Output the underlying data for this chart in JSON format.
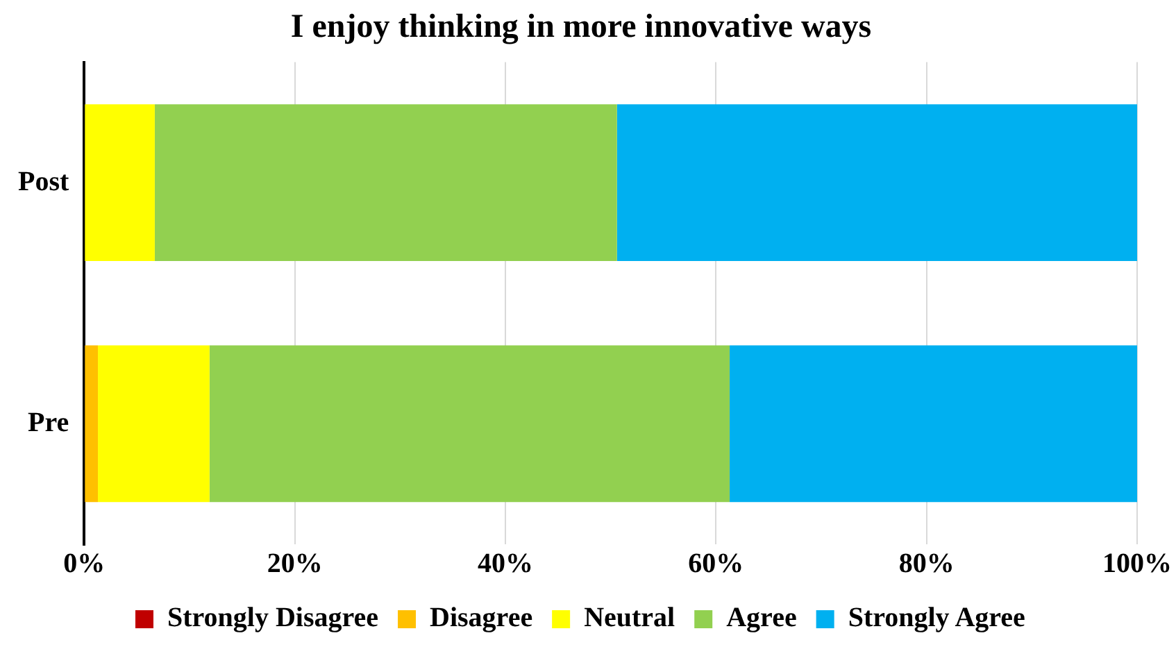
{
  "chart_data": {
    "type": "bar",
    "orientation": "horizontal",
    "stacked": true,
    "title": "I enjoy thinking in more innovative ways",
    "categories": [
      "Post",
      "Pre"
    ],
    "series": [
      {
        "name": "Strongly Disagree",
        "color": "#c00000",
        "values": [
          0,
          0
        ]
      },
      {
        "name": "Disagree",
        "color": "#ffc000",
        "values": [
          0,
          1.3
        ]
      },
      {
        "name": "Neutral",
        "color": "#ffff00",
        "values": [
          6.7,
          10.6
        ]
      },
      {
        "name": "Agree",
        "color": "#92d050",
        "values": [
          43.9,
          49.4
        ]
      },
      {
        "name": "Strongly Agree",
        "color": "#00b0f0",
        "values": [
          49.4,
          38.7
        ]
      }
    ],
    "xlim": [
      0,
      100
    ],
    "xticks": [
      {
        "value": 0,
        "label": "0%"
      },
      {
        "value": 20,
        "label": "20%"
      },
      {
        "value": 40,
        "label": "40%"
      },
      {
        "value": 60,
        "label": "60%"
      },
      {
        "value": 80,
        "label": "80%"
      },
      {
        "value": 100,
        "label": "100%"
      }
    ],
    "grid": "x",
    "legend": "bottom"
  }
}
